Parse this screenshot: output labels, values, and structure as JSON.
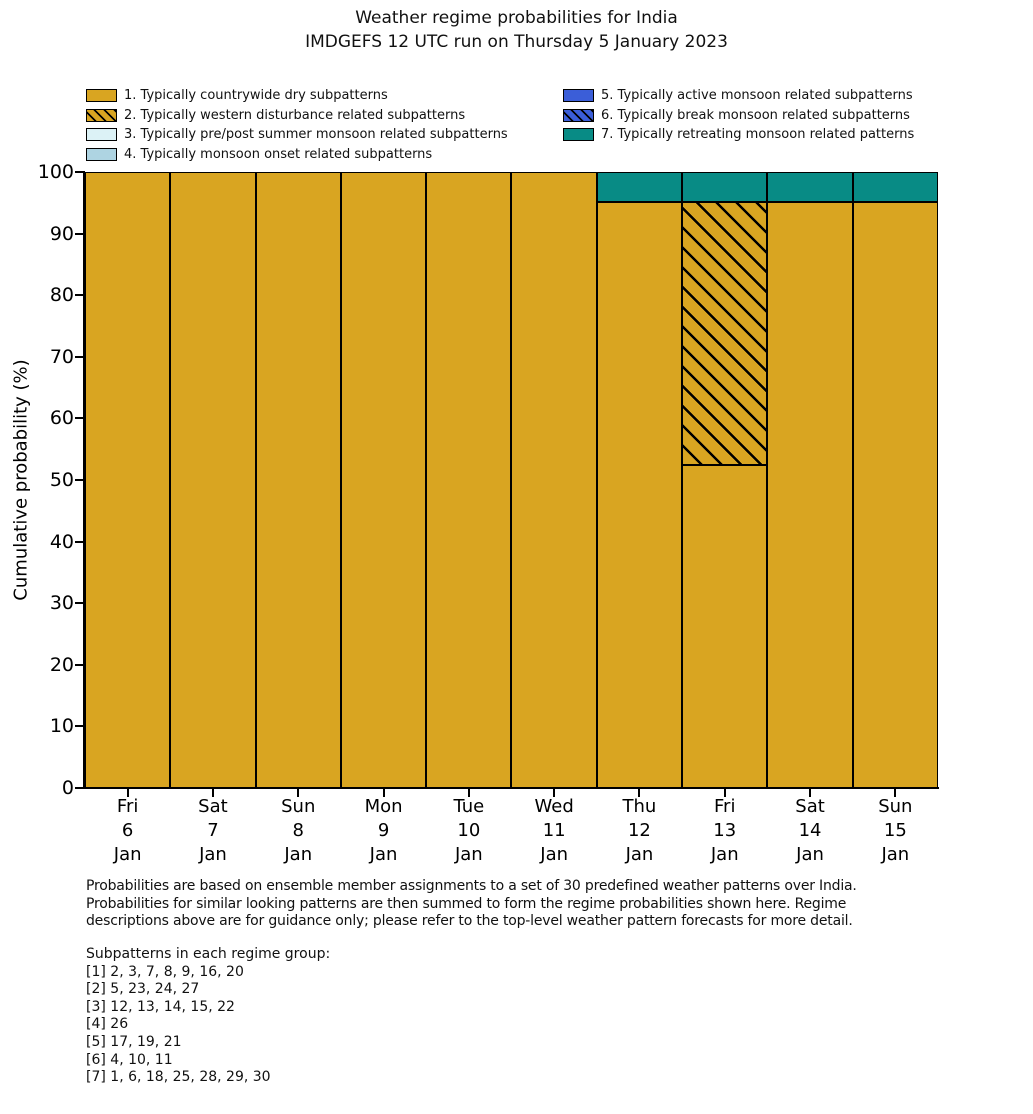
{
  "title": "Weather regime probabilities for India",
  "subtitle": "IMDGEFS 12 UTC run on Thursday 5 January 2023",
  "chart_data": {
    "type": "bar",
    "stacked": true,
    "title": "Weather regime probabilities for India",
    "subtitle": "IMDGEFS 12 UTC run on Thursday 5 January 2023",
    "xlabel": "",
    "ylabel": "Cumulative probability (%)",
    "ylim": [
      0,
      100
    ],
    "yticks": [
      0,
      10,
      20,
      30,
      40,
      50,
      60,
      70,
      80,
      90,
      100
    ],
    "grid": false,
    "legend_position": "top",
    "legend_columns": [
      [
        0,
        1,
        2,
        3
      ],
      [
        4,
        5,
        6
      ]
    ],
    "edge_color": "#000000",
    "categories": [
      [
        "Fri",
        "6",
        "Jan"
      ],
      [
        "Sat",
        "7",
        "Jan"
      ],
      [
        "Sun",
        "8",
        "Jan"
      ],
      [
        "Mon",
        "9",
        "Jan"
      ],
      [
        "Tue",
        "10",
        "Jan"
      ],
      [
        "Wed",
        "11",
        "Jan"
      ],
      [
        "Thu",
        "12",
        "Jan"
      ],
      [
        "Fri",
        "13",
        "Jan"
      ],
      [
        "Sat",
        "14",
        "Jan"
      ],
      [
        "Sun",
        "15",
        "Jan"
      ]
    ],
    "series": [
      {
        "name": "1. Typically countrywide dry subpatterns",
        "color": "#d9a521",
        "hatch": false,
        "values": [
          100,
          100,
          100,
          100,
          100,
          100,
          95.2,
          52.4,
          95.2,
          95.2
        ]
      },
      {
        "name": "2. Typically western disturbance related subpatterns",
        "color": "#d9a521",
        "hatch": true,
        "values": [
          0,
          0,
          0,
          0,
          0,
          0,
          0,
          42.8,
          0,
          0
        ]
      },
      {
        "name": "3. Typically pre/post summer monsoon related subpatterns",
        "color": "#dcf2f6",
        "hatch": false,
        "values": [
          0,
          0,
          0,
          0,
          0,
          0,
          0,
          0,
          0,
          0
        ]
      },
      {
        "name": "4. Typically monsoon onset related subpatterns",
        "color": "#aed4e2",
        "hatch": false,
        "values": [
          0,
          0,
          0,
          0,
          0,
          0,
          0,
          0,
          0,
          0
        ]
      },
      {
        "name": "5. Typically active monsoon related subpatterns",
        "color": "#3b5ed8",
        "hatch": false,
        "values": [
          0,
          0,
          0,
          0,
          0,
          0,
          0,
          0,
          0,
          0
        ]
      },
      {
        "name": "6. Typically break monsoon related subpatterns",
        "color": "#3b5ed8",
        "hatch": true,
        "values": [
          0,
          0,
          0,
          0,
          0,
          0,
          0,
          0,
          0,
          0
        ]
      },
      {
        "name": "7. Typically retreating monsoon related patterns",
        "color": "#088b85",
        "hatch": false,
        "values": [
          0,
          0,
          0,
          0,
          0,
          0,
          4.8,
          4.8,
          4.8,
          4.8
        ]
      }
    ]
  },
  "footer": {
    "lines": [
      "Probabilities are based on ensemble member assignments to a set of 30 predefined weather patterns over India.",
      "Probabilities for similar looking patterns are then summed to form the regime probabilities shown here. Regime",
      "descriptions above are for guidance only; please refer to the top-level weather pattern forecasts for more detail."
    ]
  },
  "subpatterns": {
    "heading": "Subpatterns in each regime group:",
    "lines": [
      "[1] 2, 3, 7, 8, 9, 16, 20",
      "[2] 5, 23, 24, 27",
      "[3] 12, 13, 14, 15, 22",
      "[4] 26",
      "[5] 17, 19, 21",
      "[6] 4, 10, 11",
      "[7] 1, 6, 18, 25, 28, 29, 30"
    ]
  }
}
